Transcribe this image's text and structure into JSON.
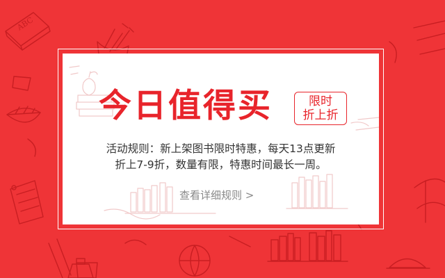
{
  "banner": {
    "headline": "今日值得买",
    "badge": {
      "line1": "限时",
      "line2": "折上折"
    },
    "rules": {
      "line1": "活动规则：新上架图书限时特惠，每天13点更新",
      "line2": "折上7-9折，数量有限，特惠时间最长一周。"
    },
    "detail_link": "查看详细规则 >"
  },
  "colors": {
    "background": "#ef3437",
    "accent": "#e8242b",
    "card": "#ffffff"
  },
  "decorations": [
    "abc-book-icon",
    "pencils-icon",
    "leaf-icon",
    "apple-icon",
    "books-stack-icon",
    "paper-note-icon",
    "ink-bottle-icon",
    "globe-icon",
    "hat-icon"
  ]
}
